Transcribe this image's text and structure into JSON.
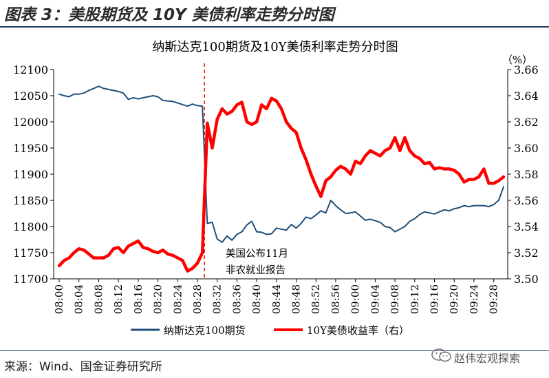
{
  "figure": {
    "title": "图表 3：美股期货及 10Y 美债利率走势分时图",
    "source": "来源：Wind、国金证券研究所",
    "watermark": "赵伟宏观探索",
    "watermark_icon": "wechat-icon"
  },
  "chart_data": {
    "type": "line",
    "title": "纳斯达克100期货及10Y美债利率走势分时图",
    "right_axis_unit": "（%）",
    "x_ticks": [
      "08:00",
      "08:04",
      "08:08",
      "08:12",
      "08:16",
      "08:20",
      "08:24",
      "08:28",
      "08:32",
      "08:36",
      "08:40",
      "08:44",
      "08:48",
      "08:52",
      "08:56",
      "09:00",
      "09:04",
      "09:08",
      "09:12",
      "09:16",
      "09:20",
      "09:24",
      "09:28"
    ],
    "y_left": {
      "min": 11700,
      "max": 12100,
      "ticks": [
        11700,
        11750,
        11800,
        11850,
        11900,
        11950,
        12000,
        12050,
        12100
      ]
    },
    "y_right": {
      "min": 3.5,
      "max": 3.66,
      "ticks": [
        "3.50",
        "3.52",
        "3.54",
        "3.56",
        "3.58",
        "3.60",
        "3.62",
        "3.64",
        "3.66"
      ]
    },
    "event_marker": {
      "x": "08:29",
      "label_line1": "美国公布11月",
      "label_line2": "非农就业报告"
    },
    "colors": {
      "nasdaq": "#1f4e79",
      "yield": "#ff0000",
      "event": "#ff0000"
    },
    "series": [
      {
        "name": "纳斯达克100期货",
        "axis": "left",
        "x": [
          "08:00",
          "08:01",
          "08:02",
          "08:03",
          "08:04",
          "08:05",
          "08:06",
          "08:07",
          "08:08",
          "08:09",
          "08:10",
          "08:11",
          "08:12",
          "08:13",
          "08:14",
          "08:15",
          "08:16",
          "08:17",
          "08:18",
          "08:19",
          "08:20",
          "08:21",
          "08:22",
          "08:23",
          "08:24",
          "08:25",
          "08:26",
          "08:27",
          "08:28",
          "08:29",
          "08:30",
          "08:31",
          "08:32",
          "08:33",
          "08:34",
          "08:35",
          "08:36",
          "08:37",
          "08:38",
          "08:39",
          "08:40",
          "08:41",
          "08:42",
          "08:43",
          "08:44",
          "08:45",
          "08:46",
          "08:47",
          "08:48",
          "08:49",
          "08:50",
          "08:51",
          "08:52",
          "08:53",
          "08:54",
          "08:55",
          "08:56",
          "08:57",
          "08:58",
          "08:59",
          "09:00",
          "09:01",
          "09:02",
          "09:03",
          "09:04",
          "09:05",
          "09:06",
          "09:07",
          "09:08",
          "09:09",
          "09:10",
          "09:11",
          "09:12",
          "09:13",
          "09:14",
          "09:15",
          "09:16",
          "09:17",
          "09:18",
          "09:19",
          "09:20",
          "09:21",
          "09:22",
          "09:23",
          "09:24",
          "09:25",
          "09:26",
          "09:27",
          "09:28",
          "09:29",
          "09:30"
        ],
        "values": [
          12053,
          12050,
          12048,
          12053,
          12053,
          12055,
          12060,
          12064,
          12068,
          12064,
          12062,
          12060,
          12058,
          12055,
          12043,
          12046,
          12044,
          12046,
          12048,
          12050,
          12048,
          12041,
          12040,
          12039,
          12036,
          12033,
          12030,
          12034,
          12031,
          12030,
          11806,
          11808,
          11776,
          11770,
          11782,
          11774,
          11785,
          11790,
          11803,
          11810,
          11790,
          11789,
          11785,
          11786,
          11797,
          11795,
          11793,
          11804,
          11797,
          11806,
          11818,
          11815,
          11822,
          11830,
          11826,
          11850,
          11840,
          11832,
          11825,
          11826,
          11828,
          11820,
          11812,
          11814,
          11811,
          11808,
          11800,
          11798,
          11790,
          11795,
          11800,
          11810,
          11815,
          11823,
          11828,
          11826,
          11824,
          11828,
          11832,
          11830,
          11834,
          11836,
          11840,
          11838,
          11840,
          11840,
          11840,
          11838,
          11842,
          11850,
          11876
        ]
      },
      {
        "name": "10Y美债收益率（右）",
        "axis": "right",
        "x": [
          "08:00",
          "08:01",
          "08:02",
          "08:03",
          "08:04",
          "08:05",
          "08:06",
          "08:07",
          "08:08",
          "08:09",
          "08:10",
          "08:11",
          "08:12",
          "08:13",
          "08:14",
          "08:15",
          "08:16",
          "08:17",
          "08:18",
          "08:19",
          "08:20",
          "08:21",
          "08:22",
          "08:23",
          "08:24",
          "08:25",
          "08:26",
          "08:27",
          "08:28",
          "08:29",
          "08:30",
          "08:31",
          "08:32",
          "08:33",
          "08:34",
          "08:35",
          "08:36",
          "08:37",
          "08:38",
          "08:39",
          "08:40",
          "08:41",
          "08:42",
          "08:43",
          "08:44",
          "08:45",
          "08:46",
          "08:47",
          "08:48",
          "08:49",
          "08:50",
          "08:51",
          "08:52",
          "08:53",
          "08:54",
          "08:55",
          "08:56",
          "08:57",
          "08:58",
          "08:59",
          "09:00",
          "09:01",
          "09:02",
          "09:03",
          "09:04",
          "09:05",
          "09:06",
          "09:07",
          "09:08",
          "09:09",
          "09:10",
          "09:11",
          "09:12",
          "09:13",
          "09:14",
          "09:15",
          "09:16",
          "09:17",
          "09:18",
          "09:19",
          "09:20",
          "09:21",
          "09:22",
          "09:23",
          "09:24",
          "09:25",
          "09:26",
          "09:27",
          "09:28",
          "09:29",
          "09:30"
        ],
        "values": [
          3.51,
          3.514,
          3.516,
          3.52,
          3.523,
          3.522,
          3.519,
          3.516,
          3.516,
          3.516,
          3.518,
          3.523,
          3.524,
          3.52,
          3.525,
          3.527,
          3.529,
          3.524,
          3.523,
          3.521,
          3.52,
          3.522,
          3.519,
          3.518,
          3.516,
          3.514,
          3.506,
          3.508,
          3.512,
          3.52,
          3.619,
          3.6,
          3.622,
          3.63,
          3.626,
          3.628,
          3.633,
          3.635,
          3.62,
          3.618,
          3.62,
          3.633,
          3.63,
          3.638,
          3.636,
          3.63,
          3.62,
          3.615,
          3.612,
          3.6,
          3.591,
          3.58,
          3.571,
          3.563,
          3.575,
          3.578,
          3.583,
          3.586,
          3.584,
          3.58,
          3.59,
          3.588,
          3.594,
          3.598,
          3.596,
          3.594,
          3.598,
          3.6,
          3.608,
          3.598,
          3.608,
          3.598,
          3.594,
          3.592,
          3.588,
          3.589,
          3.584,
          3.585,
          3.584,
          3.584,
          3.583,
          3.58,
          3.574,
          3.576,
          3.576,
          3.578,
          3.584,
          3.573,
          3.573,
          3.575,
          3.578
        ]
      }
    ],
    "grid": false,
    "legend_position": "bottom"
  }
}
